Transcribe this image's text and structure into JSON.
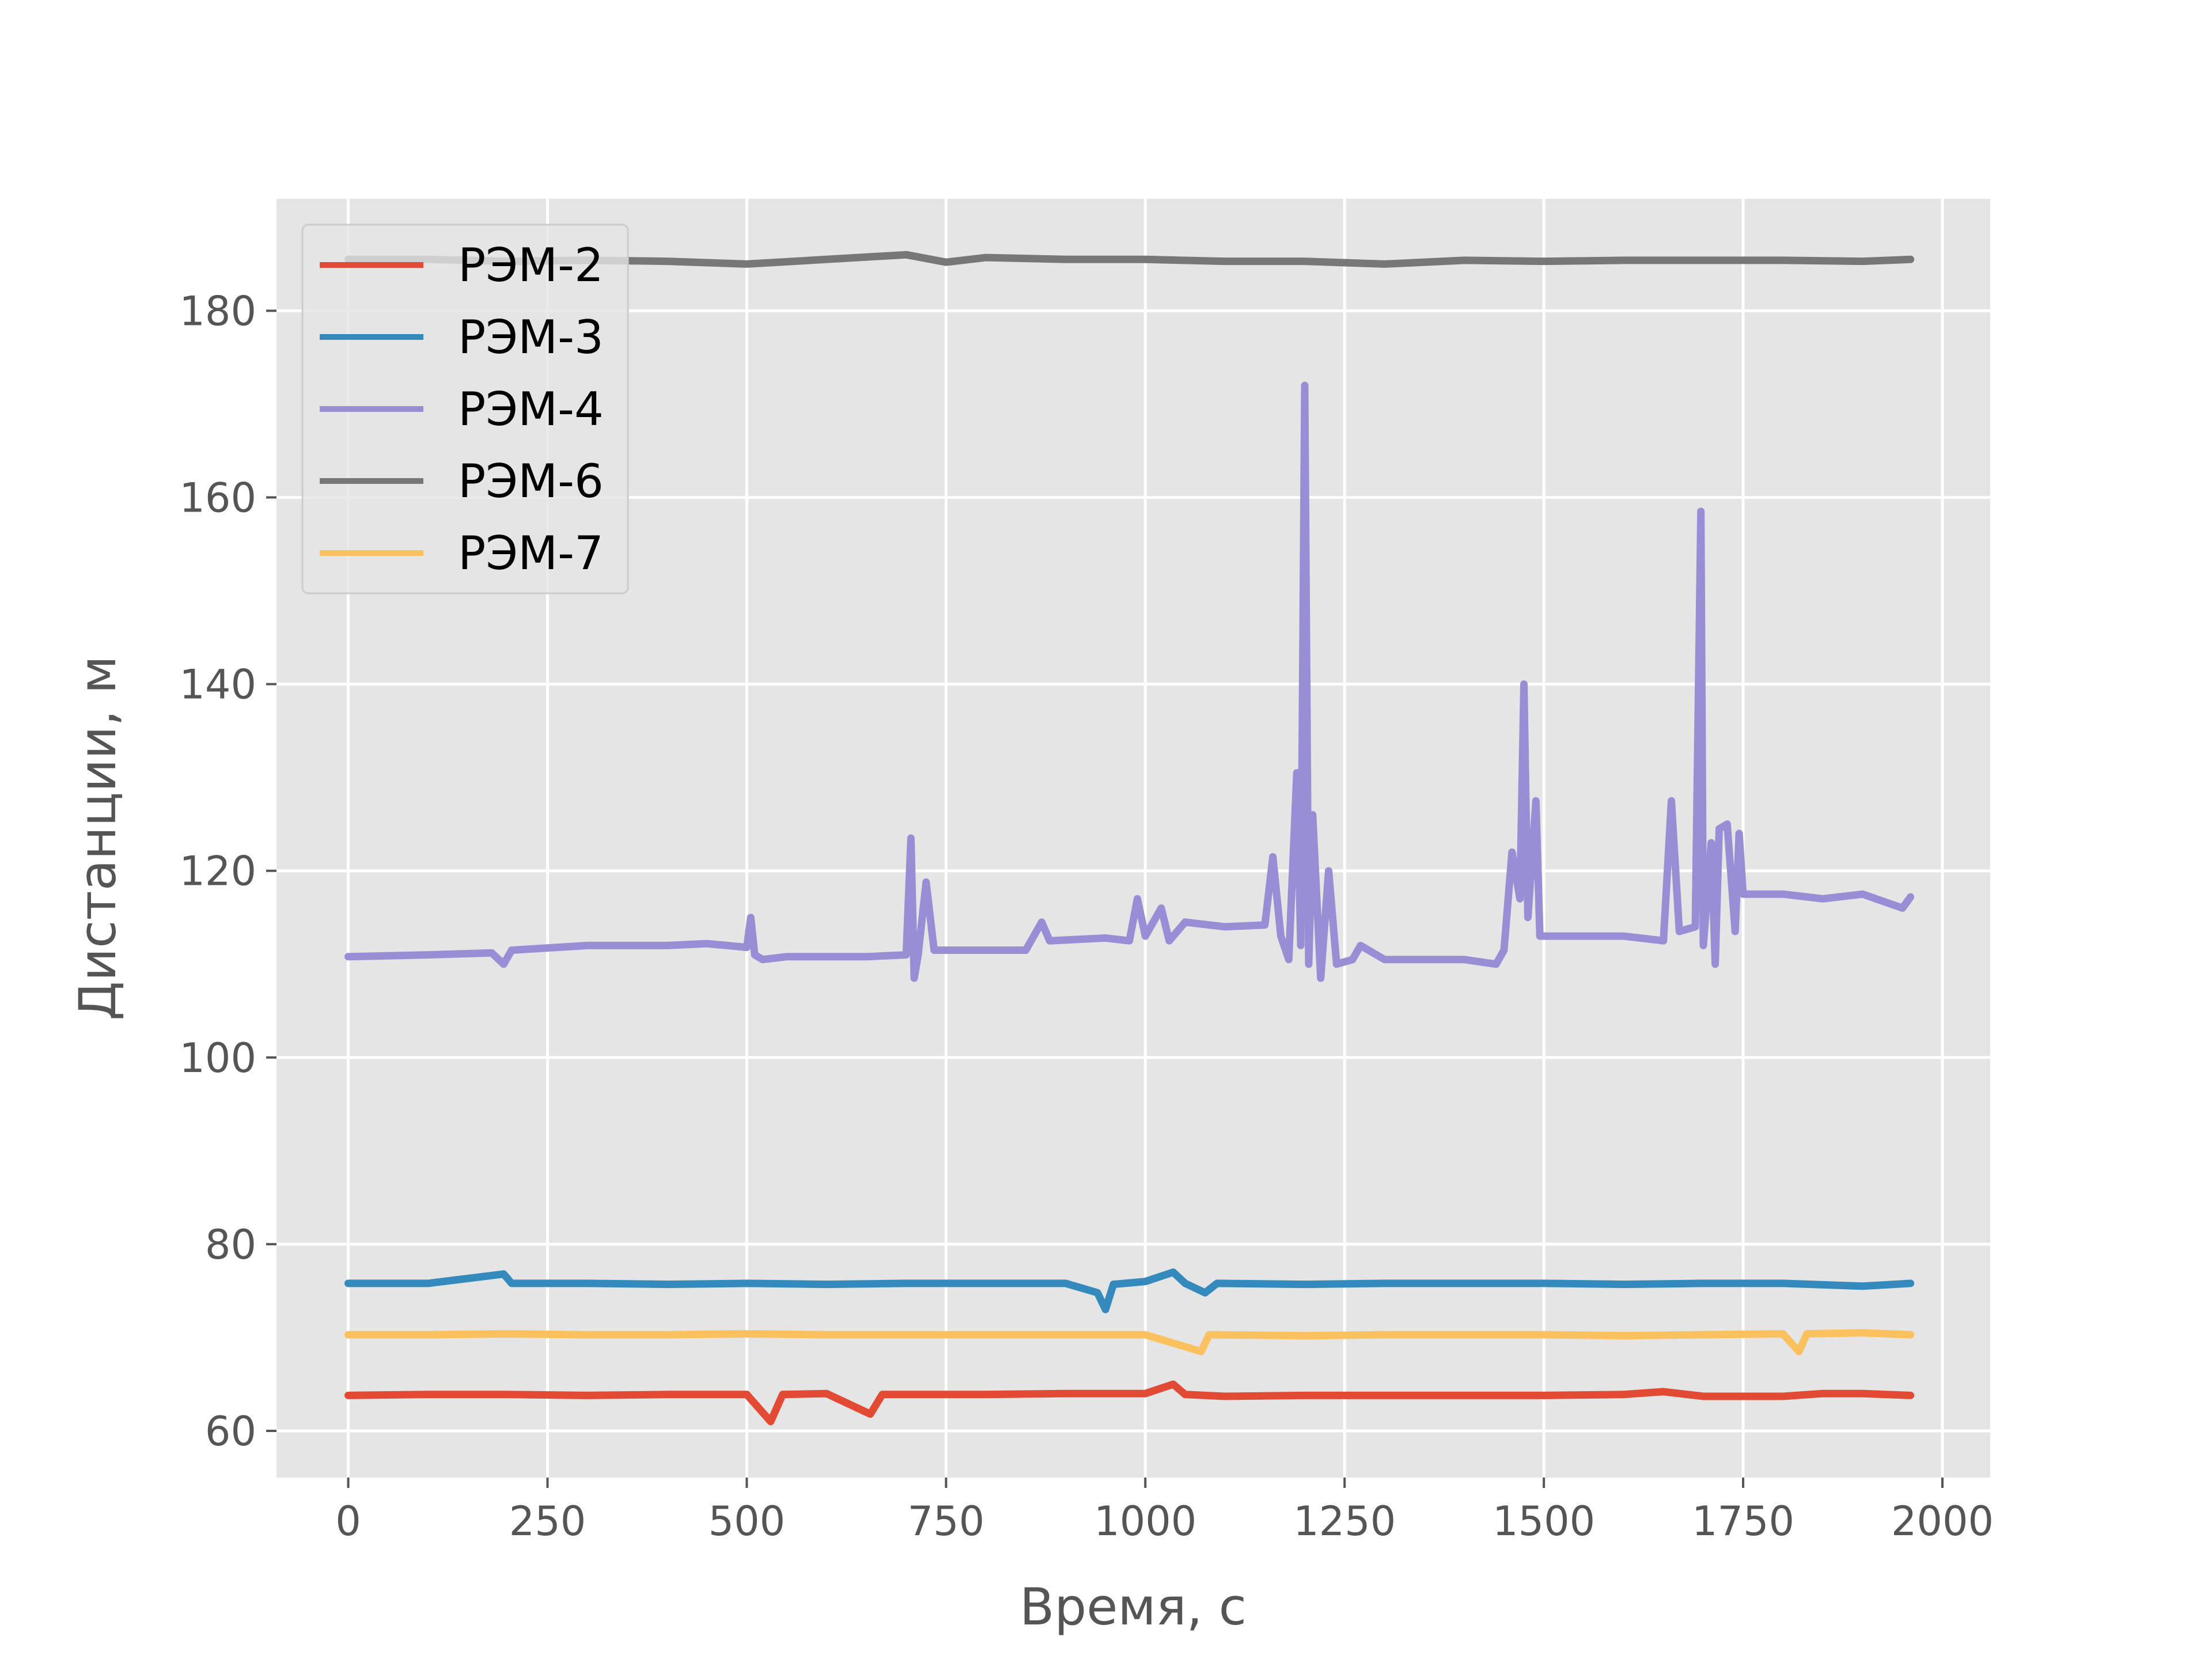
{
  "chart_data": {
    "type": "line",
    "xlabel": "Время, с",
    "ylabel": "Дистанции, м",
    "xlim": [
      -90,
      2060
    ],
    "ylim": [
      55,
      192
    ],
    "xticks": [
      0,
      250,
      500,
      750,
      1000,
      1250,
      1500,
      1750,
      2000
    ],
    "yticks": [
      60,
      80,
      100,
      120,
      140,
      160,
      180
    ],
    "grid": true,
    "legend_position": "top-left",
    "background": "#e5e5e5",
    "series": [
      {
        "name": "РЭМ-2",
        "color": "#e24a33",
        "points": [
          [
            0,
            63.8
          ],
          [
            100,
            63.9
          ],
          [
            200,
            63.9
          ],
          [
            300,
            63.8
          ],
          [
            400,
            63.9
          ],
          [
            500,
            63.9
          ],
          [
            530,
            61.0
          ],
          [
            545,
            63.9
          ],
          [
            600,
            64.0
          ],
          [
            655,
            61.8
          ],
          [
            670,
            63.9
          ],
          [
            800,
            63.9
          ],
          [
            900,
            64.0
          ],
          [
            1000,
            64.0
          ],
          [
            1035,
            65.0
          ],
          [
            1050,
            63.9
          ],
          [
            1100,
            63.7
          ],
          [
            1200,
            63.8
          ],
          [
            1300,
            63.8
          ],
          [
            1400,
            63.8
          ],
          [
            1500,
            63.8
          ],
          [
            1600,
            63.9
          ],
          [
            1650,
            64.2
          ],
          [
            1700,
            63.7
          ],
          [
            1800,
            63.7
          ],
          [
            1850,
            64.0
          ],
          [
            1900,
            64.0
          ],
          [
            1960,
            63.8
          ]
        ]
      },
      {
        "name": "РЭМ-3",
        "color": "#348abd",
        "points": [
          [
            0,
            75.8
          ],
          [
            100,
            75.8
          ],
          [
            195,
            76.8
          ],
          [
            205,
            75.8
          ],
          [
            300,
            75.8
          ],
          [
            400,
            75.7
          ],
          [
            500,
            75.8
          ],
          [
            600,
            75.7
          ],
          [
            700,
            75.8
          ],
          [
            800,
            75.8
          ],
          [
            900,
            75.8
          ],
          [
            940,
            74.8
          ],
          [
            950,
            73.0
          ],
          [
            960,
            75.7
          ],
          [
            1000,
            76.0
          ],
          [
            1035,
            77.0
          ],
          [
            1050,
            75.8
          ],
          [
            1075,
            74.8
          ],
          [
            1090,
            75.8
          ],
          [
            1200,
            75.7
          ],
          [
            1300,
            75.8
          ],
          [
            1400,
            75.8
          ],
          [
            1500,
            75.8
          ],
          [
            1600,
            75.7
          ],
          [
            1700,
            75.8
          ],
          [
            1800,
            75.8
          ],
          [
            1900,
            75.5
          ],
          [
            1960,
            75.8
          ]
        ]
      },
      {
        "name": "РЭМ-4",
        "color": "#988ed5",
        "points": [
          [
            0,
            110.8
          ],
          [
            100,
            111.0
          ],
          [
            180,
            111.2
          ],
          [
            195,
            110.0
          ],
          [
            205,
            111.5
          ],
          [
            300,
            112.0
          ],
          [
            400,
            112.0
          ],
          [
            450,
            112.2
          ],
          [
            500,
            111.8
          ],
          [
            505,
            115.0
          ],
          [
            510,
            111.0
          ],
          [
            520,
            110.5
          ],
          [
            550,
            110.8
          ],
          [
            600,
            110.8
          ],
          [
            650,
            110.8
          ],
          [
            700,
            111.0
          ],
          [
            706,
            123.5
          ],
          [
            710,
            108.5
          ],
          [
            715,
            111.0
          ],
          [
            725,
            118.8
          ],
          [
            735,
            111.5
          ],
          [
            800,
            111.5
          ],
          [
            850,
            111.5
          ],
          [
            870,
            114.5
          ],
          [
            880,
            112.5
          ],
          [
            950,
            112.8
          ],
          [
            980,
            112.5
          ],
          [
            990,
            117.0
          ],
          [
            1000,
            113.0
          ],
          [
            1020,
            116.0
          ],
          [
            1030,
            112.5
          ],
          [
            1050,
            114.5
          ],
          [
            1100,
            114.0
          ],
          [
            1150,
            114.2
          ],
          [
            1160,
            121.5
          ],
          [
            1170,
            113.0
          ],
          [
            1180,
            110.5
          ],
          [
            1190,
            130.5
          ],
          [
            1195,
            112.0
          ],
          [
            1200,
            172.0
          ],
          [
            1205,
            110.0
          ],
          [
            1210,
            126.0
          ],
          [
            1220,
            108.5
          ],
          [
            1230,
            120.0
          ],
          [
            1240,
            110.0
          ],
          [
            1260,
            110.5
          ],
          [
            1270,
            112.0
          ],
          [
            1300,
            110.5
          ],
          [
            1350,
            110.5
          ],
          [
            1400,
            110.5
          ],
          [
            1440,
            110.0
          ],
          [
            1450,
            111.5
          ],
          [
            1460,
            122.0
          ],
          [
            1470,
            117.0
          ],
          [
            1475,
            140.0
          ],
          [
            1480,
            115.0
          ],
          [
            1490,
            127.5
          ],
          [
            1495,
            113.0
          ],
          [
            1500,
            113.0
          ],
          [
            1550,
            113.0
          ],
          [
            1600,
            113.0
          ],
          [
            1650,
            112.5
          ],
          [
            1660,
            127.5
          ],
          [
            1670,
            113.5
          ],
          [
            1690,
            114.0
          ],
          [
            1697,
            158.5
          ],
          [
            1700,
            112.0
          ],
          [
            1710,
            123.0
          ],
          [
            1715,
            110.0
          ],
          [
            1720,
            124.5
          ],
          [
            1730,
            125.0
          ],
          [
            1740,
            113.5
          ],
          [
            1745,
            124.0
          ],
          [
            1750,
            117.5
          ],
          [
            1800,
            117.5
          ],
          [
            1850,
            117.0
          ],
          [
            1900,
            117.5
          ],
          [
            1950,
            116.0
          ],
          [
            1960,
            117.2
          ]
        ]
      },
      {
        "name": "РЭМ-6",
        "color": "#777777",
        "points": [
          [
            0,
            185.5
          ],
          [
            100,
            185.5
          ],
          [
            200,
            185.3
          ],
          [
            300,
            185.4
          ],
          [
            400,
            185.3
          ],
          [
            500,
            185.0
          ],
          [
            600,
            185.5
          ],
          [
            700,
            186.0
          ],
          [
            750,
            185.2
          ],
          [
            800,
            185.7
          ],
          [
            900,
            185.5
          ],
          [
            1000,
            185.5
          ],
          [
            1100,
            185.3
          ],
          [
            1200,
            185.3
          ],
          [
            1300,
            185.0
          ],
          [
            1400,
            185.4
          ],
          [
            1500,
            185.3
          ],
          [
            1600,
            185.4
          ],
          [
            1700,
            185.4
          ],
          [
            1800,
            185.4
          ],
          [
            1900,
            185.3
          ],
          [
            1960,
            185.5
          ]
        ]
      },
      {
        "name": "РЭМ-7",
        "color": "#fbc15e",
        "points": [
          [
            0,
            70.3
          ],
          [
            100,
            70.3
          ],
          [
            200,
            70.4
          ],
          [
            300,
            70.3
          ],
          [
            400,
            70.3
          ],
          [
            500,
            70.4
          ],
          [
            600,
            70.3
          ],
          [
            700,
            70.3
          ],
          [
            800,
            70.3
          ],
          [
            900,
            70.3
          ],
          [
            1000,
            70.3
          ],
          [
            1070,
            68.5
          ],
          [
            1080,
            70.3
          ],
          [
            1200,
            70.2
          ],
          [
            1300,
            70.3
          ],
          [
            1400,
            70.3
          ],
          [
            1500,
            70.3
          ],
          [
            1600,
            70.2
          ],
          [
            1700,
            70.3
          ],
          [
            1800,
            70.4
          ],
          [
            1820,
            68.5
          ],
          [
            1830,
            70.4
          ],
          [
            1900,
            70.5
          ],
          [
            1960,
            70.3
          ]
        ]
      }
    ]
  }
}
